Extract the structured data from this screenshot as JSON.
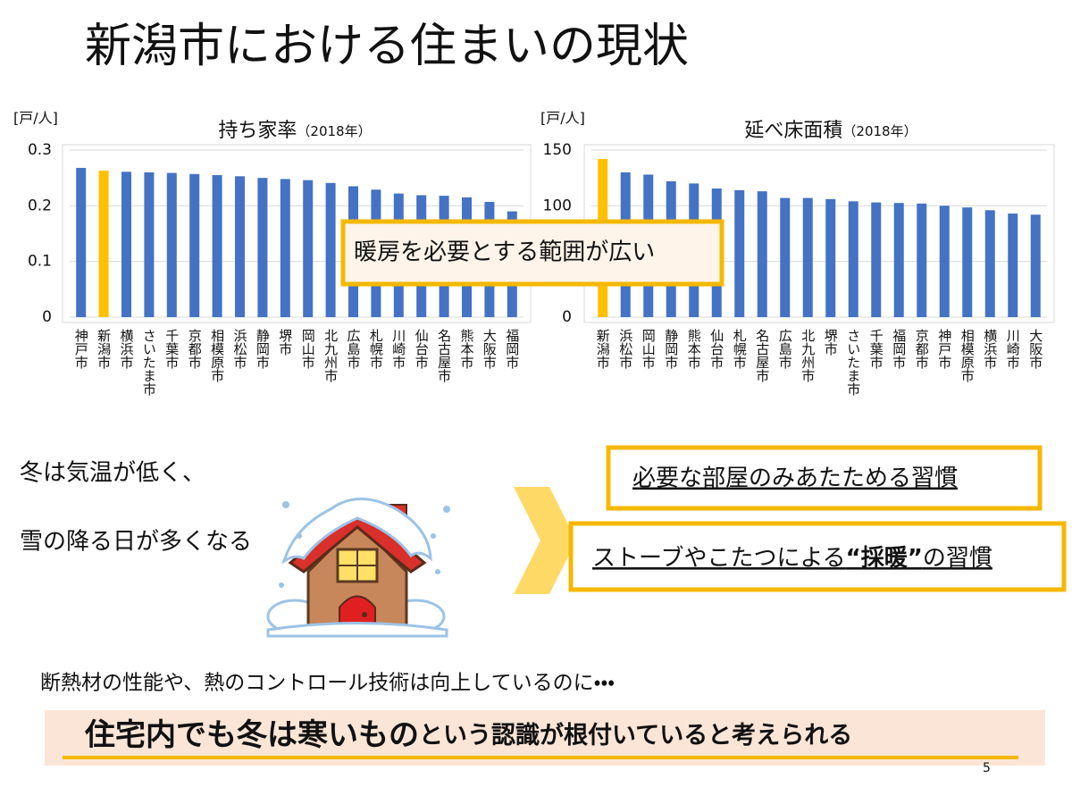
{
  "title": "新潟市における住まいの現状",
  "chart_data": [
    {
      "type": "bar",
      "title": "持ち家率",
      "subtitle": "（2018年）",
      "unit_label": "[戸/人]",
      "categories": [
        "神戸市",
        "新潟市",
        "横浜市",
        "さいたま市",
        "千葉市",
        "京都市",
        "相模原市",
        "浜松市",
        "静岡市",
        "堺市",
        "岡山市",
        "北九州市",
        "広島市",
        "札幌市",
        "川崎市",
        "仙台市",
        "名古屋市",
        "熊本市",
        "大阪市",
        "福岡市"
      ],
      "values": [
        0.268,
        0.263,
        0.261,
        0.26,
        0.259,
        0.257,
        0.255,
        0.253,
        0.25,
        0.248,
        0.246,
        0.241,
        0.235,
        0.229,
        0.222,
        0.219,
        0.218,
        0.215,
        0.207,
        0.19
      ],
      "colors": [
        "#4472c4",
        "#ffc000",
        "#4472c4",
        "#4472c4",
        "#4472c4",
        "#4472c4",
        "#4472c4",
        "#4472c4",
        "#4472c4",
        "#4472c4",
        "#4472c4",
        "#4472c4",
        "#4472c4",
        "#4472c4",
        "#4472c4",
        "#4472c4",
        "#4472c4",
        "#4472c4",
        "#4472c4",
        "#4472c4"
      ],
      "ylim": [
        0,
        0.3
      ],
      "yticks": [
        0,
        0.1,
        0.2,
        0.3
      ],
      "grid": true
    },
    {
      "type": "bar",
      "title": "延べ床面積",
      "subtitle": "（2018年）",
      "unit_label": "[戸/人]",
      "categories": [
        "新潟市",
        "浜松市",
        "岡山市",
        "静岡市",
        "熊本市",
        "仙台市",
        "札幌市",
        "名古屋市",
        "広島市",
        "北九州市",
        "堺市",
        "さいたま市",
        "千葉市",
        "福岡市",
        "京都市",
        "神戸市",
        "相模原市",
        "横浜市",
        "川崎市",
        "大阪市"
      ],
      "values": [
        142,
        130,
        128,
        122,
        120,
        115.5,
        114,
        113,
        107,
        107,
        106,
        104,
        103,
        102.5,
        102,
        100,
        98.5,
        96,
        93,
        92
      ],
      "colors": [
        "#ffc000",
        "#4472c4",
        "#4472c4",
        "#4472c4",
        "#4472c4",
        "#4472c4",
        "#4472c4",
        "#4472c4",
        "#4472c4",
        "#4472c4",
        "#4472c4",
        "#4472c4",
        "#4472c4",
        "#4472c4",
        "#4472c4",
        "#4472c4",
        "#4472c4",
        "#4472c4",
        "#4472c4",
        "#4472c4"
      ],
      "ylim": [
        0,
        150
      ],
      "yticks": [
        0,
        50,
        100,
        150
      ],
      "grid": true
    }
  ],
  "callout": "暖房を必要とする範囲が広い",
  "climate": [
    "冬は気温が低く、",
    "雪の降る日が多くなる"
  ],
  "habits": [
    {
      "text": "必要な部屋のみあたためる習慣"
    },
    {
      "before": "ストーブやこたつによる",
      "bold": "“採暖”",
      "after": "の習慣"
    }
  ],
  "note": "断熱材の性能や、熱のコントロール技術は向上しているのに・・・",
  "conclusion": {
    "emphasis": "住宅内でも冬は寒いもの",
    "rest": "という認識が根付いていると考えられる"
  },
  "page_number": "5"
}
